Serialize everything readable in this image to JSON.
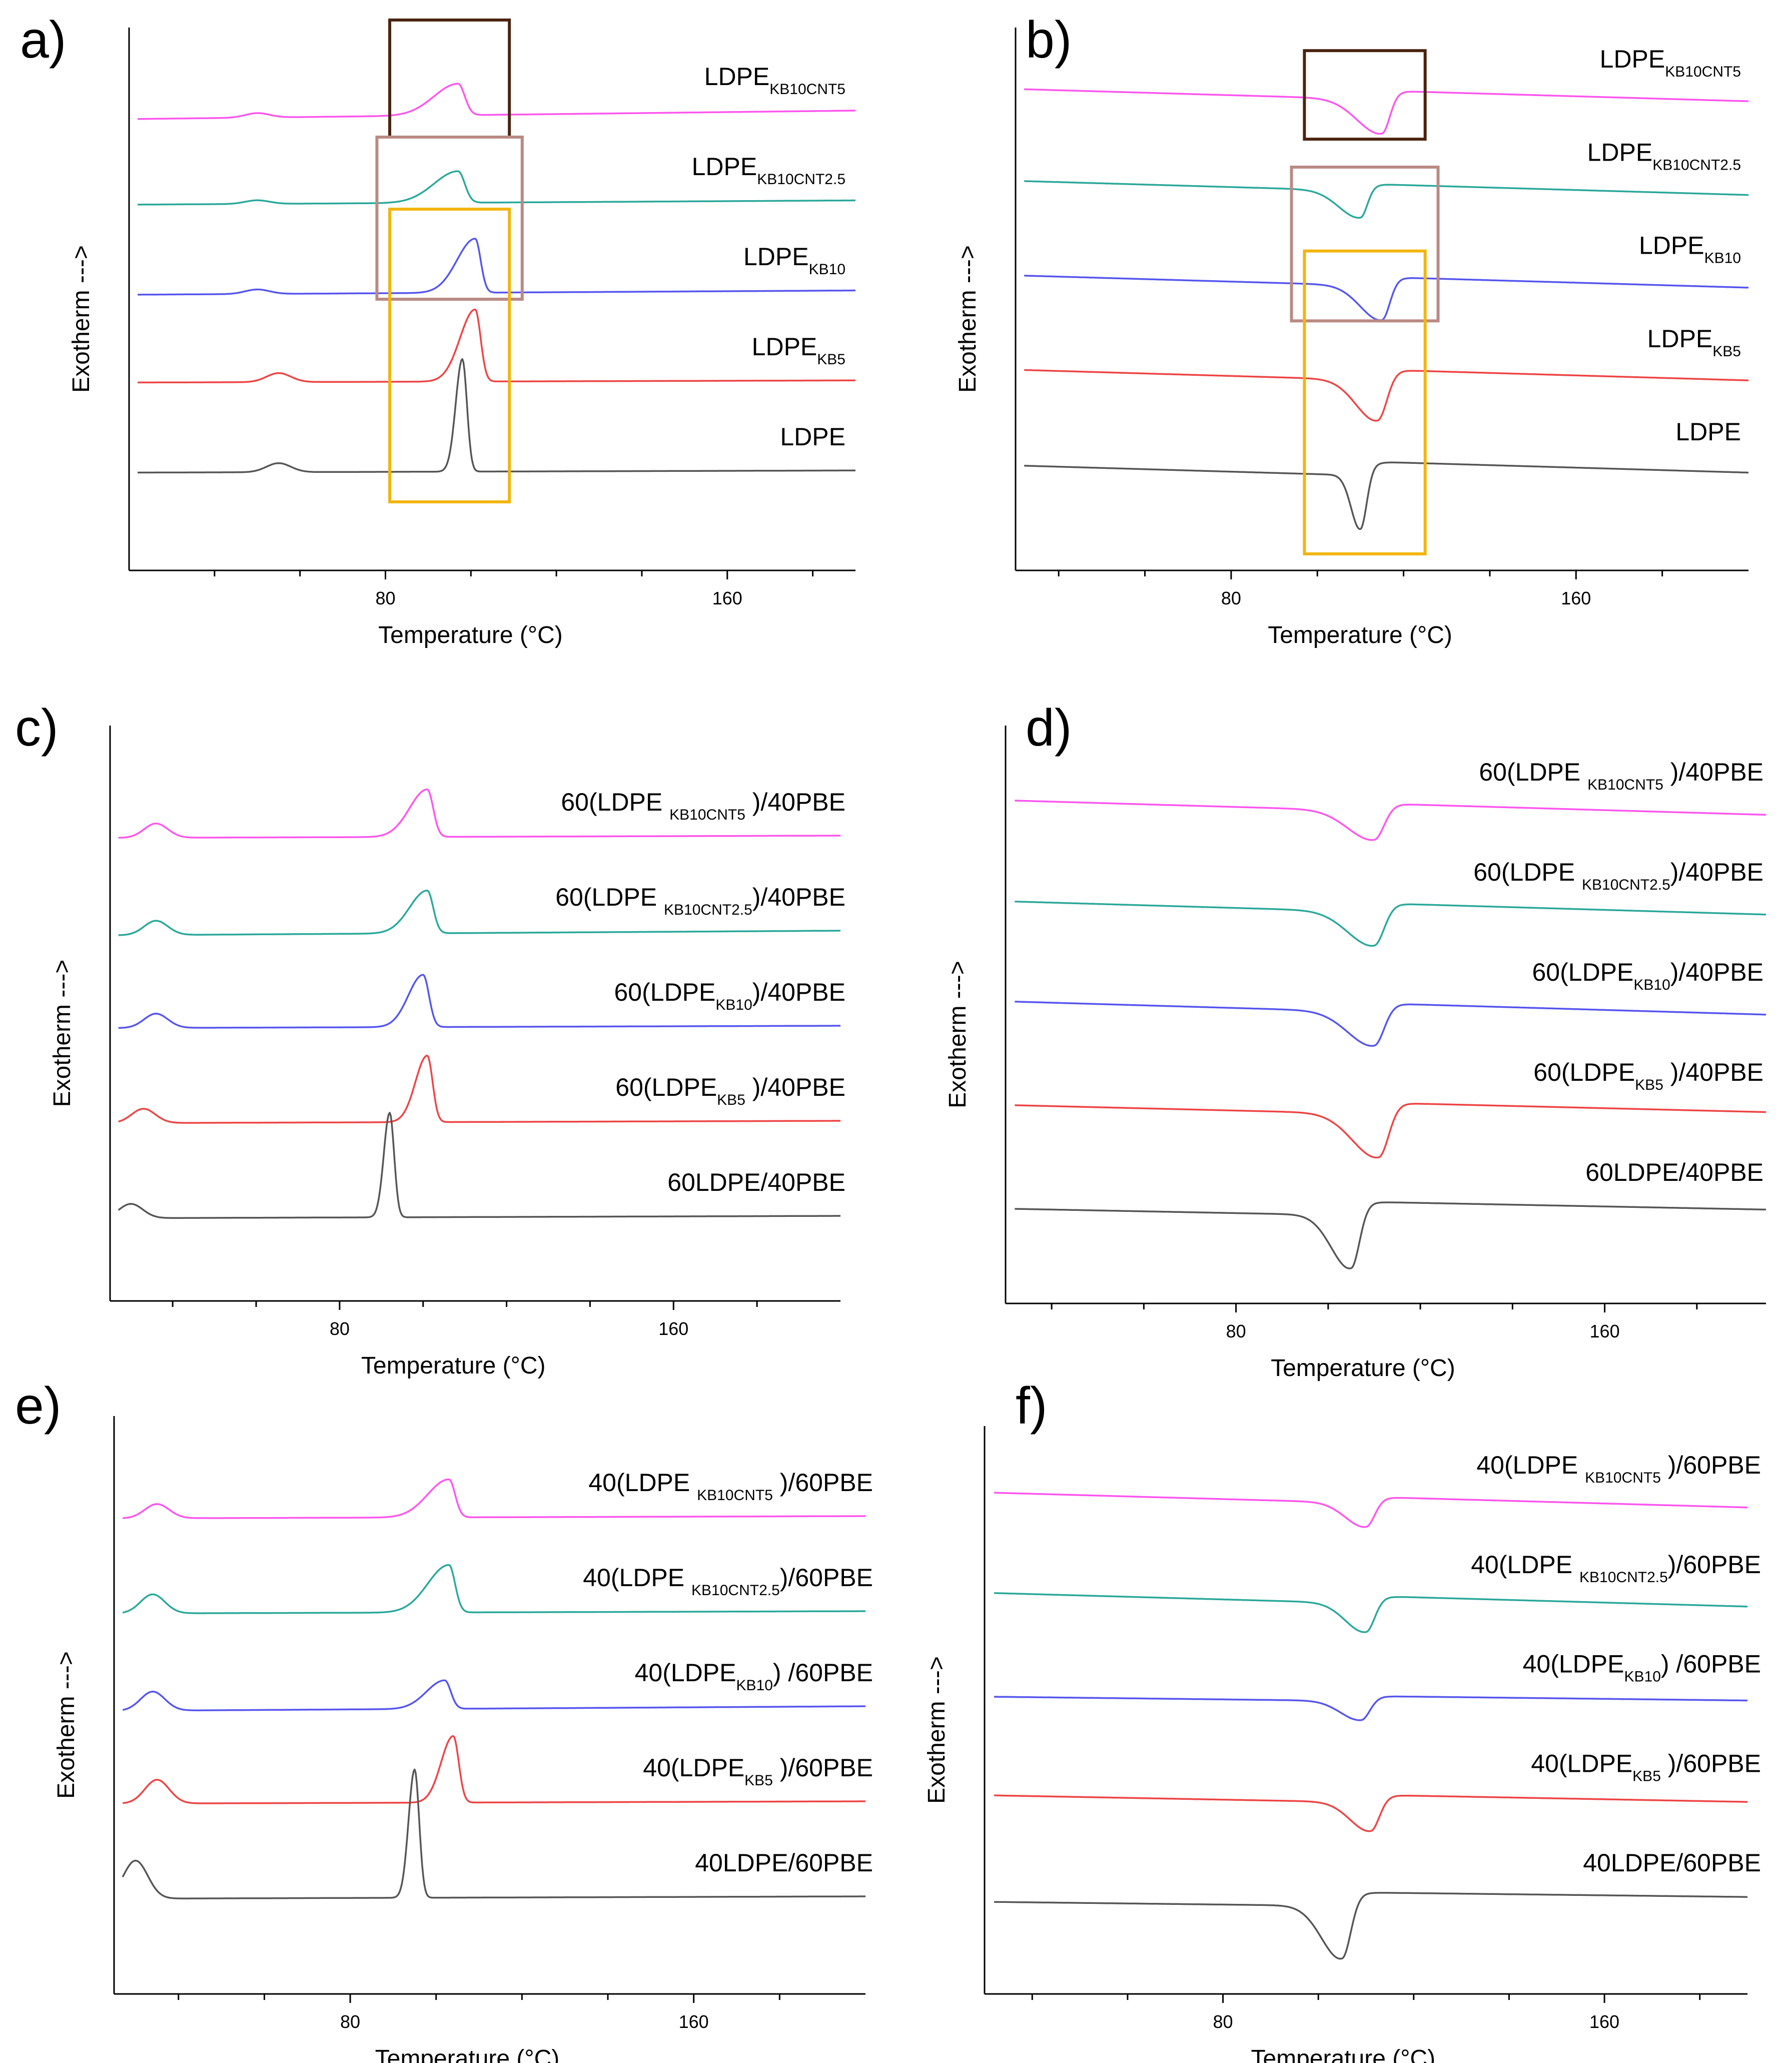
{
  "colors": {
    "magenta": "#ff55ee",
    "teal": "#2aa89a",
    "blue": "#5555ee",
    "red": "#ee4444",
    "black": "#555555",
    "box_dark": "#4a2410",
    "box_mauve": "#b98a84",
    "box_yellow": "#f2b50f"
  },
  "chart_data": [
    {
      "panel": "a",
      "panel_label": "a)",
      "type": "line",
      "mode": "exo_up",
      "title": "",
      "xlabel": "Temperature (°C)",
      "ylabel": "Exotherm --->",
      "xlim": [
        20,
        190
      ],
      "xticks": [
        40,
        60,
        80,
        100,
        120,
        140,
        160,
        180
      ],
      "xtick_labels": [
        "80",
        "160"
      ],
      "series": [
        {
          "name": "LDPE_KB10CNT5",
          "label_main": "LDPE",
          "label_sub": "KB10CNT5",
          "label_suffix": "",
          "color": "magenta",
          "base": 4.0,
          "slope": 0.2,
          "peak_T": 97,
          "peak_h": 0.35,
          "peak_wl": 8,
          "peak_wr": 2.2,
          "bump_T": 50,
          "bump_h": 0.05
        },
        {
          "name": "LDPE_KB10CNT2.5",
          "label_main": "LDPE",
          "label_sub": "KB10CNT2.5",
          "label_suffix": "",
          "color": "teal",
          "base": 3.0,
          "slope": 0.1,
          "peak_T": 97,
          "peak_h": 0.35,
          "peak_wl": 8,
          "peak_wr": 2.2,
          "bump_T": 50,
          "bump_h": 0.04
        },
        {
          "name": "LDPE_KB10",
          "label_main": "LDPE",
          "label_sub": "KB10",
          "label_suffix": "",
          "color": "blue",
          "base": 2.0,
          "slope": 0.1,
          "peak_T": 101,
          "peak_h": 0.6,
          "peak_wl": 6,
          "peak_wr": 1.8,
          "bump_T": 50,
          "bump_h": 0.05
        },
        {
          "name": "LDPE_KB5",
          "label_main": "LDPE",
          "label_sub": "KB5",
          "label_suffix": "",
          "color": "red",
          "base": 1.0,
          "slope": 0.05,
          "peak_T": 101,
          "peak_h": 0.8,
          "peak_wl": 5,
          "peak_wr": 1.8,
          "bump_T": 55,
          "bump_h": 0.1
        },
        {
          "name": "LDPE",
          "label_main": "LDPE",
          "label_sub": "",
          "label_suffix": "",
          "color": "black",
          "base": 0.0,
          "slope": 0.05,
          "peak_T": 98,
          "peak_h": 1.25,
          "peak_wl": 2.2,
          "peak_wr": 1.5,
          "bump_T": 55,
          "bump_h": 0.1
        }
      ],
      "boxes": [
        {
          "color": "box_dark",
          "t1": 81,
          "t2": 109,
          "s1": 3.7,
          "s2": 5.0
        },
        {
          "color": "box_mauve",
          "t1": 78,
          "t2": 112,
          "s1": 1.9,
          "s2": 3.7
        },
        {
          "color": "box_yellow",
          "t1": 81,
          "t2": 109,
          "s1": -0.35,
          "s2": 2.9
        }
      ]
    },
    {
      "panel": "b",
      "panel_label": "b)",
      "type": "line",
      "mode": "endo_down",
      "title": "",
      "xlabel": "Temperature (°C)",
      "ylabel": "Exotherm --->",
      "xlim": [
        30,
        200
      ],
      "xticks": [
        40,
        60,
        80,
        100,
        120,
        140,
        160,
        180
      ],
      "xtick_labels": [
        "80",
        "160"
      ],
      "series": [
        {
          "name": "LDPE_KB10CNT5",
          "label_main": "LDPE",
          "label_sub": "KB10CNT5",
          "label_suffix": "",
          "color": "magenta",
          "base": 4.0,
          "slope": 0.12,
          "peak_T": 115,
          "peak_h": 0.38,
          "peak_wl": 8,
          "peak_wr": 2.5,
          "bump_T": 0,
          "bump_h": 0
        },
        {
          "name": "LDPE_KB10CNT2.5",
          "label_main": "LDPE",
          "label_sub": "KB10CNT2.5",
          "label_suffix": "",
          "color": "teal",
          "base": 3.0,
          "slope": 0.12,
          "peak_T": 110,
          "peak_h": 0.3,
          "peak_wl": 7,
          "peak_wr": 2.2,
          "bump_T": 0,
          "bump_h": 0
        },
        {
          "name": "LDPE_KB10",
          "label_main": "LDPE",
          "label_sub": "KB10",
          "label_suffix": "",
          "color": "blue",
          "base": 2.0,
          "slope": 0.12,
          "peak_T": 115,
          "peak_h": 0.38,
          "peak_wl": 7,
          "peak_wr": 2.5,
          "bump_T": 0,
          "bump_h": 0
        },
        {
          "name": "LDPE_KB5",
          "label_main": "LDPE",
          "label_sub": "KB5",
          "label_suffix": "",
          "color": "red",
          "base": 1.0,
          "slope": 0.12,
          "peak_T": 114,
          "peak_h": 0.45,
          "peak_wl": 7,
          "peak_wr": 3,
          "bump_T": 0,
          "bump_h": 0
        },
        {
          "name": "LDPE",
          "label_main": "LDPE",
          "label_sub": "",
          "label_suffix": "",
          "color": "black",
          "base": 0.0,
          "slope": 0.12,
          "peak_T": 110,
          "peak_h": 0.6,
          "peak_wl": 3,
          "peak_wr": 2,
          "bump_T": 0,
          "bump_h": 0
        }
      ],
      "boxes": [
        {
          "color": "box_dark",
          "t1": 97,
          "t2": 125,
          "s1": 3.5,
          "s2": 4.45
        },
        {
          "color": "box_mauve",
          "t1": 94,
          "t2": 128,
          "s1": 1.55,
          "s2": 3.2
        },
        {
          "color": "box_yellow",
          "t1": 97,
          "t2": 125,
          "s1": -0.95,
          "s2": 2.3
        }
      ]
    },
    {
      "panel": "c",
      "panel_label": "c)",
      "type": "line",
      "mode": "exo_up",
      "title": "",
      "xlabel": "Temperature (°C)",
      "ylabel": "Exotherm --->",
      "xlim": [
        25,
        200
      ],
      "xticks": [
        40,
        60,
        80,
        100,
        120,
        140,
        160,
        180
      ],
      "xtick_labels": [
        "80",
        "160"
      ],
      "series": [
        {
          "name": "60(LDPE_KB10CNT5)/40PBE",
          "label_main": "60(LDPE ",
          "label_sub": "KB10CNT5",
          "label_suffix": " )/40PBE",
          "color": "magenta",
          "base": 4.0,
          "slope": 0.05,
          "peak_T": 101,
          "peak_h": 0.5,
          "peak_wl": 6,
          "peak_wr": 2,
          "bump_T": 36,
          "bump_h": 0.15
        },
        {
          "name": "60(LDPE_KB10CNT2.5)/40PBE",
          "label_main": "60(LDPE ",
          "label_sub": "KB10CNT2.5",
          "label_suffix": ")/40PBE",
          "color": "teal",
          "base": 3.0,
          "slope": 0.1,
          "peak_T": 101,
          "peak_h": 0.45,
          "peak_wl": 6,
          "peak_wr": 2,
          "bump_T": 36,
          "bump_h": 0.15
        },
        {
          "name": "60(LDPE_KB10)/40PBE",
          "label_main": "60(LDPE",
          "label_sub": "KB10",
          "label_suffix": ")/40PBE",
          "color": "blue",
          "base": 2.0,
          "slope": 0.05,
          "peak_T": 100,
          "peak_h": 0.55,
          "peak_wl": 5,
          "peak_wr": 2,
          "bump_T": 36,
          "bump_h": 0.15
        },
        {
          "name": "60(LDPE_KB5)/40PBE",
          "label_main": "60(LDPE",
          "label_sub": "KB5",
          "label_suffix": " )/40PBE",
          "color": "red",
          "base": 1.0,
          "slope": 0.05,
          "peak_T": 101,
          "peak_h": 0.7,
          "peak_wl": 4,
          "peak_wr": 1.8,
          "bump_T": 33,
          "bump_h": 0.15
        },
        {
          "name": "60LDPE/40PBE",
          "label_main": "60LDPE/40PBE",
          "label_sub": "",
          "label_suffix": "",
          "color": "black",
          "base": 0.0,
          "slope": 0.05,
          "peak_T": 92,
          "peak_h": 1.1,
          "peak_wl": 2,
          "peak_wr": 1.5,
          "bump_T": 30,
          "bump_h": 0.15
        }
      ],
      "boxes": []
    },
    {
      "panel": "d",
      "panel_label": "d)",
      "type": "line",
      "mode": "endo_down",
      "title": "",
      "xlabel": "Temperature (°C)",
      "ylabel": "Exotherm --->",
      "xlim": [
        30,
        195
      ],
      "xticks": [
        40,
        60,
        80,
        100,
        120,
        140,
        160,
        180
      ],
      "xtick_labels": [
        "80",
        "160"
      ],
      "series": [
        {
          "name": "60(LDPE_KB10CNT5)/40PBE",
          "label_main": "60(LDPE ",
          "label_sub": "KB10CNT5",
          "label_suffix": " )/40PBE",
          "color": "magenta",
          "base": 4.0,
          "slope": 0.12,
          "peak_T": 110,
          "peak_h": 0.3,
          "peak_wl": 8,
          "peak_wr": 3,
          "bump_T": 0,
          "bump_h": 0
        },
        {
          "name": "60(LDPE_KB10CNT2.5)/40PBE",
          "label_main": "60(LDPE ",
          "label_sub": "KB10CNT2.5",
          "label_suffix": ")/40PBE",
          "color": "teal",
          "base": 3.0,
          "slope": 0.12,
          "peak_T": 110,
          "peak_h": 0.35,
          "peak_wl": 8,
          "peak_wr": 3,
          "bump_T": 0,
          "bump_h": 0
        },
        {
          "name": "60(LDPE_KB10)/40PBE",
          "label_main": "60(LDPE",
          "label_sub": "KB10",
          "label_suffix": ")/40PBE",
          "color": "blue",
          "base": 2.0,
          "slope": 0.12,
          "peak_T": 110,
          "peak_h": 0.35,
          "peak_wl": 8,
          "peak_wr": 3,
          "bump_T": 0,
          "bump_h": 0
        },
        {
          "name": "60(LDPE_KB5)/40PBE",
          "label_main": "60(LDPE",
          "label_sub": "KB5",
          "label_suffix": " )/40PBE",
          "color": "red",
          "base": 1.0,
          "slope": 0.1,
          "peak_T": 111,
          "peak_h": 0.45,
          "peak_wl": 8,
          "peak_wr": 3,
          "bump_T": 0,
          "bump_h": 0
        },
        {
          "name": "60LDPE/40PBE",
          "label_main": "60LDPE/40PBE",
          "label_sub": "",
          "label_suffix": "",
          "color": "black",
          "base": 0.0,
          "slope": 0.08,
          "peak_T": 105,
          "peak_h": 0.55,
          "peak_wl": 6,
          "peak_wr": 2.5,
          "bump_T": 0,
          "bump_h": 0
        }
      ],
      "boxes": []
    },
    {
      "panel": "e",
      "panel_label": "e)",
      "type": "line",
      "mode": "exo_up",
      "title": "",
      "xlabel": "Temperature (°C)",
      "ylabel": "Exotherm --->",
      "xlim": [
        25,
        200
      ],
      "xticks": [
        40,
        60,
        80,
        100,
        120,
        140,
        160,
        180
      ],
      "xtick_labels": [
        "80",
        "160"
      ],
      "series": [
        {
          "name": "40(LDPE_KB10CNT5)/60PBE",
          "label_main": "40(LDPE ",
          "label_sub": "KB10CNT5",
          "label_suffix": " )/60PBE",
          "color": "magenta",
          "base": 4.0,
          "slope": 0.05,
          "peak_T": 103,
          "peak_h": 0.4,
          "peak_wl": 7,
          "peak_wr": 2,
          "bump_T": 35,
          "bump_h": 0.15
        },
        {
          "name": "40(LDPE_KB10CNT2.5)/60PBE",
          "label_main": "40(LDPE ",
          "label_sub": "KB10CNT2.5",
          "label_suffix": ")/60PBE",
          "color": "teal",
          "base": 3.0,
          "slope": 0.05,
          "peak_T": 103,
          "peak_h": 0.5,
          "peak_wl": 7,
          "peak_wr": 2,
          "bump_T": 34,
          "bump_h": 0.2
        },
        {
          "name": "40(LDPE_KB10)/60PBE",
          "label_main": "40(LDPE",
          "label_sub": "KB10",
          "label_suffix": ") /60PBE",
          "color": "blue",
          "base": 2.0,
          "slope": 0.1,
          "peak_T": 102,
          "peak_h": 0.3,
          "peak_wl": 6,
          "peak_wr": 2,
          "bump_T": 34,
          "bump_h": 0.2
        },
        {
          "name": "40(LDPE_KB5)/60PBE",
          "label_main": "40(LDPE",
          "label_sub": "KB5",
          "label_suffix": " )/60PBE",
          "color": "red",
          "base": 1.0,
          "slope": 0.05,
          "peak_T": 104,
          "peak_h": 0.7,
          "peak_wl": 4,
          "peak_wr": 1.8,
          "bump_T": 35,
          "bump_h": 0.25
        },
        {
          "name": "40LDPE/60PBE",
          "label_main": "40LDPE/60PBE",
          "label_sub": "",
          "label_suffix": "",
          "color": "black",
          "base": 0.0,
          "slope": 0.05,
          "peak_T": 95,
          "peak_h": 1.35,
          "peak_wl": 2,
          "peak_wr": 1.5,
          "bump_T": 30,
          "bump_h": 0.4
        }
      ],
      "boxes": []
    },
    {
      "panel": "f",
      "panel_label": "f)",
      "type": "line",
      "mode": "endo_down",
      "title": "",
      "xlabel": "Temperature (°C)",
      "ylabel": "Exotherm --->",
      "xlim": [
        30,
        190
      ],
      "xticks": [
        40,
        60,
        80,
        100,
        120,
        140,
        160,
        180
      ],
      "xtick_labels": [
        "80",
        "160"
      ],
      "series": [
        {
          "name": "40(LDPE_KB10CNT5)/60PBE",
          "label_main": "40(LDPE ",
          "label_sub": "KB10CNT5",
          "label_suffix": " )/60PBE",
          "color": "magenta",
          "base": 4.0,
          "slope": 0.12,
          "peak_T": 110,
          "peak_h": 0.25,
          "peak_wl": 6,
          "peak_wr": 2.5,
          "bump_T": 0,
          "bump_h": 0
        },
        {
          "name": "40(LDPE_KB10CNT2.5)/60PBE",
          "label_main": "40(LDPE ",
          "label_sub": "KB10CNT2.5",
          "label_suffix": ")/60PBE",
          "color": "teal",
          "base": 3.0,
          "slope": 0.12,
          "peak_T": 110,
          "peak_h": 0.3,
          "peak_wl": 6,
          "peak_wr": 2.5,
          "bump_T": 0,
          "bump_h": 0
        },
        {
          "name": "40(LDPE_KB10)/60PBE",
          "label_main": "40(LDPE",
          "label_sub": "KB10",
          "label_suffix": ") /60PBE",
          "color": "blue",
          "base": 2.0,
          "slope": 0.05,
          "peak_T": 109,
          "peak_h": 0.2,
          "peak_wl": 6,
          "peak_wr": 2.5,
          "bump_T": 0,
          "bump_h": 0
        },
        {
          "name": "40(LDPE_KB5)/60PBE",
          "label_main": "40(LDPE",
          "label_sub": "KB5",
          "label_suffix": " )/60PBE",
          "color": "red",
          "base": 1.0,
          "slope": 0.08,
          "peak_T": 111,
          "peak_h": 0.3,
          "peak_wl": 6,
          "peak_wr": 2.5,
          "bump_T": 0,
          "bump_h": 0
        },
        {
          "name": "40LDPE/60PBE",
          "label_main": "40LDPE/60PBE",
          "label_sub": "",
          "label_suffix": "",
          "color": "black",
          "base": 0.0,
          "slope": 0.05,
          "peak_T": 105,
          "peak_h": 0.55,
          "peak_wl": 6,
          "peak_wr": 2.5,
          "bump_T": 0,
          "bump_h": 0
        }
      ],
      "boxes": []
    }
  ]
}
